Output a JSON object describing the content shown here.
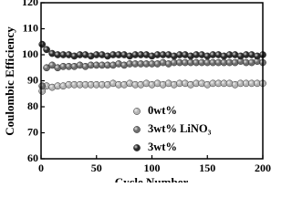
{
  "chart_data": {
    "type": "scatter",
    "x_label": "Cycle Number",
    "y_label": "Coulombic Efficiency",
    "xlim": [
      0,
      200
    ],
    "ylim": [
      60,
      120
    ],
    "xticks": [
      0,
      50,
      100,
      150,
      200
    ],
    "yticks": [
      60,
      70,
      80,
      90,
      100,
      110,
      120
    ],
    "legend": "lower right",
    "x": [
      1,
      5,
      10,
      15,
      20,
      25,
      30,
      35,
      40,
      45,
      50,
      55,
      60,
      65,
      70,
      75,
      80,
      85,
      90,
      95,
      100,
      105,
      110,
      115,
      120,
      125,
      130,
      135,
      140,
      145,
      150,
      155,
      160,
      165,
      170,
      175,
      180,
      185,
      190,
      195,
      200
    ],
    "series": [
      {
        "name": "0wt%",
        "color": "#b4b4b4",
        "values": [
          86,
          88,
          87.5,
          88,
          88,
          88.5,
          88.5,
          88.5,
          88.5,
          88.5,
          88.5,
          88.5,
          88.5,
          89,
          88.5,
          88.5,
          89,
          88.5,
          88.5,
          89,
          88.5,
          89,
          88.5,
          89,
          88.5,
          89,
          89,
          88.5,
          89,
          89,
          88.5,
          89,
          89,
          89,
          89,
          88.5,
          89,
          89,
          89,
          89,
          89
        ]
      },
      {
        "name": "3wt% LiNO₃",
        "color": "#6e6e6e",
        "values": [
          88,
          95,
          96,
          95,
          95.5,
          95.5,
          95.5,
          96,
          95.5,
          96,
          96,
          96,
          96,
          96,
          96.5,
          96,
          96.5,
          96.5,
          96.5,
          96.5,
          96.5,
          96.5,
          97,
          96.5,
          97,
          97,
          97,
          97,
          97,
          97,
          97,
          97,
          97,
          97,
          97,
          97,
          97.5,
          97,
          97,
          97.5,
          97
        ]
      },
      {
        "name": "3wt%",
        "color": "#2a2a2a",
        "values": [
          104,
          102,
          100.5,
          100,
          100,
          100,
          99.5,
          100,
          100,
          99.5,
          100,
          100,
          99.5,
          100,
          100,
          100,
          99.5,
          100,
          100,
          100,
          99.5,
          100,
          100,
          100,
          99.5,
          100,
          100,
          99.5,
          100,
          100,
          99.5,
          100,
          100,
          99.5,
          100,
          100,
          99.5,
          100,
          100,
          99.5,
          100
        ]
      }
    ]
  }
}
